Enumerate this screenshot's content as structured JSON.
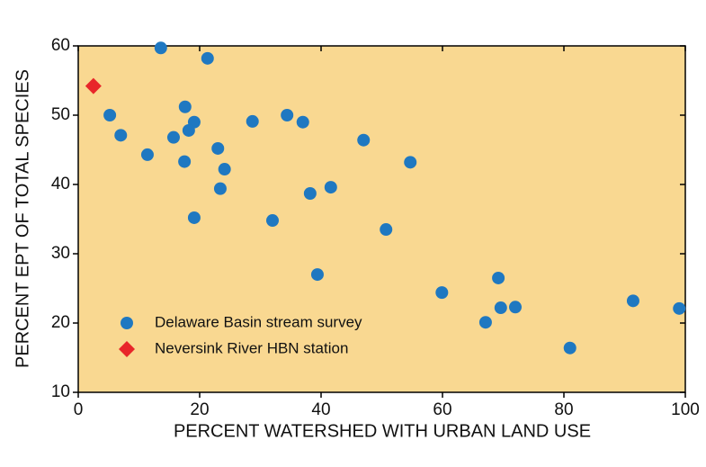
{
  "chart_data": {
    "type": "scatter",
    "xlabel": "PERCENT WATERSHED WITH URBAN LAND USE",
    "ylabel": "PERCENT EPT OF TOTAL SPECIES",
    "xlim": [
      0,
      100
    ],
    "xticks": [
      0,
      20,
      40,
      60,
      80,
      100
    ],
    "ylim": [
      10,
      60
    ],
    "yticks": [
      10,
      20,
      30,
      40,
      50,
      60
    ],
    "background": "#f9d891",
    "legend": "lower left",
    "series": [
      {
        "name": "Delaware Basin stream survey",
        "color": "#1f78c1",
        "marker": "circle",
        "x": [
          13.6,
          21.3,
          5.2,
          17.6,
          7.0,
          15.7,
          19.1,
          18.2,
          11.4,
          17.5,
          23.0,
          24.1,
          23.4,
          19.1,
          28.7,
          34.4,
          37.0,
          38.2,
          41.6,
          32.0,
          47.0,
          54.7,
          50.7,
          39.4,
          59.9,
          69.2,
          69.6,
          72.0,
          67.1,
          81.0,
          91.4,
          99.0
        ],
        "values": [
          59.7,
          58.2,
          50.0,
          51.2,
          47.1,
          46.8,
          49.0,
          47.8,
          44.3,
          43.3,
          45.2,
          42.2,
          39.4,
          35.2,
          49.1,
          50.0,
          49.0,
          38.7,
          39.6,
          34.8,
          46.4,
          43.2,
          33.5,
          27.0,
          24.4,
          26.5,
          22.2,
          22.3,
          20.1,
          16.4,
          23.2,
          22.1
        ]
      },
      {
        "name": "Neversink River HBN station",
        "color": "#e8262a",
        "marker": "diamond",
        "x": [
          2.5
        ],
        "values": [
          54.2
        ]
      }
    ]
  }
}
